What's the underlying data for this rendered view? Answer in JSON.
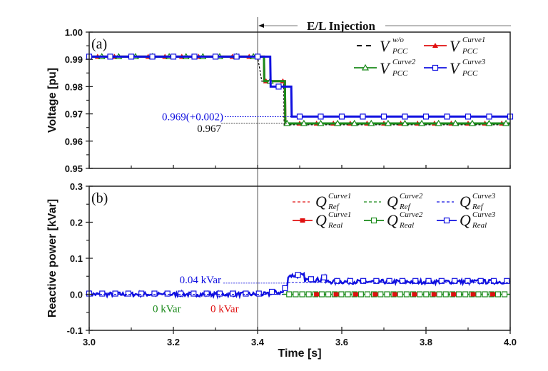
{
  "chart_data": [
    {
      "type": "line",
      "panel_label": "(a)",
      "title": "",
      "xlabel": "",
      "ylabel": "Voltage [pu]",
      "xlim": [
        3.0,
        4.0
      ],
      "ylim": [
        0.95,
        1.0
      ],
      "yticks": [
        "1.00",
        "0.99",
        "0.98",
        "0.97",
        "0.96",
        "0.95"
      ],
      "ytick_values": [
        1.0,
        0.99,
        0.98,
        0.97,
        0.96,
        0.95
      ],
      "grid": false,
      "legend_position": "top-right",
      "series": [
        {
          "name": "V_PCC^w/o",
          "sym": "V",
          "sup": "w/o",
          "sub": "PCC",
          "color": "#000000",
          "style": "dashed",
          "marker": "none",
          "x": [
            3.0,
            3.4,
            3.41,
            3.462,
            3.463,
            4.0
          ],
          "y": [
            0.991,
            0.991,
            0.982,
            0.982,
            0.966,
            0.966
          ]
        },
        {
          "name": "V_PCC^Curve1",
          "sym": "V",
          "sup": "Curve1",
          "sub": "PCC",
          "color": "#e01010",
          "style": "solid",
          "marker": "filled-triangle",
          "x": [
            3.0,
            3.4,
            3.415,
            3.416,
            3.465,
            3.466,
            4.0
          ],
          "y": [
            0.991,
            0.991,
            0.991,
            0.982,
            0.982,
            0.9665,
            0.9665
          ]
        },
        {
          "name": "V_PCC^Curve2",
          "sym": "V",
          "sup": "Curve2",
          "sub": "PCC",
          "color": "#1a8a1a",
          "style": "solid",
          "marker": "open-triangle",
          "x": [
            3.0,
            3.415,
            3.416,
            3.465,
            3.466,
            4.0
          ],
          "y": [
            0.991,
            0.991,
            0.982,
            0.982,
            0.9665,
            0.9665
          ]
        },
        {
          "name": "V_PCC^Curve3",
          "sym": "V",
          "sup": "Curve3",
          "sub": "PCC",
          "color": "#1010e0",
          "style": "solid",
          "marker": "open-square",
          "x": [
            3.0,
            3.43,
            3.431,
            3.48,
            3.481,
            4.0
          ],
          "y": [
            0.991,
            0.991,
            0.98,
            0.98,
            0.969,
            0.969
          ]
        }
      ],
      "annotations": [
        {
          "text": "0.969(+0.002)",
          "color": "#1010e0",
          "y": 0.969
        },
        {
          "text": "0.967",
          "color": "#111111",
          "y": 0.9665
        }
      ],
      "event": {
        "label": "E/L Injection",
        "x": 3.4
      }
    },
    {
      "type": "line",
      "panel_label": "(b)",
      "title": "",
      "xlabel": "Time [s]",
      "ylabel": "Reactive power [kVar]",
      "xlim": [
        3.0,
        4.0
      ],
      "ylim": [
        -0.1,
        0.3
      ],
      "xticks": [
        "3.0",
        "3.2",
        "3.4",
        "3.6",
        "3.8",
        "4.0"
      ],
      "xtick_values": [
        3.0,
        3.2,
        3.4,
        3.6,
        3.8,
        4.0
      ],
      "yticks": [
        "0.3",
        "0.2",
        "0.1",
        "0.0",
        "-0.1"
      ],
      "ytick_values": [
        0.3,
        0.2,
        0.1,
        0.0,
        -0.1
      ],
      "grid": false,
      "legend_position": "top-right",
      "series": [
        {
          "name": "Q_Ref^Curve1",
          "sym": "Q",
          "sup": "Curve1",
          "sub": "Ref",
          "color": "#e01010",
          "style": "dashed",
          "marker": "none",
          "x": [
            3.0,
            4.0
          ],
          "y": [
            0.0,
            0.0
          ]
        },
        {
          "name": "Q_Ref^Curve2",
          "sym": "Q",
          "sup": "Curve2",
          "sub": "Ref",
          "color": "#1a8a1a",
          "style": "dashed",
          "marker": "none",
          "x": [
            3.0,
            4.0
          ],
          "y": [
            0.0,
            0.0
          ]
        },
        {
          "name": "Q_Ref^Curve3",
          "sym": "Q",
          "sup": "Curve3",
          "sub": "Ref",
          "color": "#1010e0",
          "style": "dashed",
          "marker": "none",
          "x": [
            3.0,
            3.47,
            3.471,
            4.0
          ],
          "y": [
            0.0,
            0.0,
            0.033,
            0.033
          ]
        },
        {
          "name": "Q_Real^Curve1",
          "sym": "Q",
          "sup": "Curve1",
          "sub": "Real",
          "color": "#e01010",
          "style": "solid",
          "marker": "filled-square",
          "x": [
            3.0,
            4.0
          ],
          "y": [
            0.0,
            0.0
          ]
        },
        {
          "name": "Q_Real^Curve2",
          "sym": "Q",
          "sup": "Curve2",
          "sub": "Real",
          "color": "#1a8a1a",
          "style": "solid",
          "marker": "open-square",
          "x": [
            3.0,
            4.0
          ],
          "y": [
            0.0,
            0.0
          ]
        },
        {
          "name": "Q_Real^Curve3",
          "sym": "Q",
          "sup": "Curve3",
          "sub": "Real",
          "color": "#1010e0",
          "style": "solid",
          "marker": "open-square",
          "x": [
            3.0,
            3.4,
            3.43,
            3.46,
            3.47,
            3.471,
            3.51,
            3.511,
            3.55,
            3.56,
            4.0
          ],
          "y": [
            0.0,
            0.0,
            0.005,
            0.015,
            0.02,
            0.052,
            0.052,
            0.04,
            0.045,
            0.035,
            0.035
          ]
        }
      ],
      "annotations": [
        {
          "text": "0.04 kVar",
          "color": "#1010e0",
          "y": 0.033
        },
        {
          "text": "0 kVar",
          "color": "#1a8a1a",
          "y": 0.0
        },
        {
          "text": "0 kVar",
          "color": "#e01010",
          "y": 0.0
        }
      ]
    }
  ]
}
